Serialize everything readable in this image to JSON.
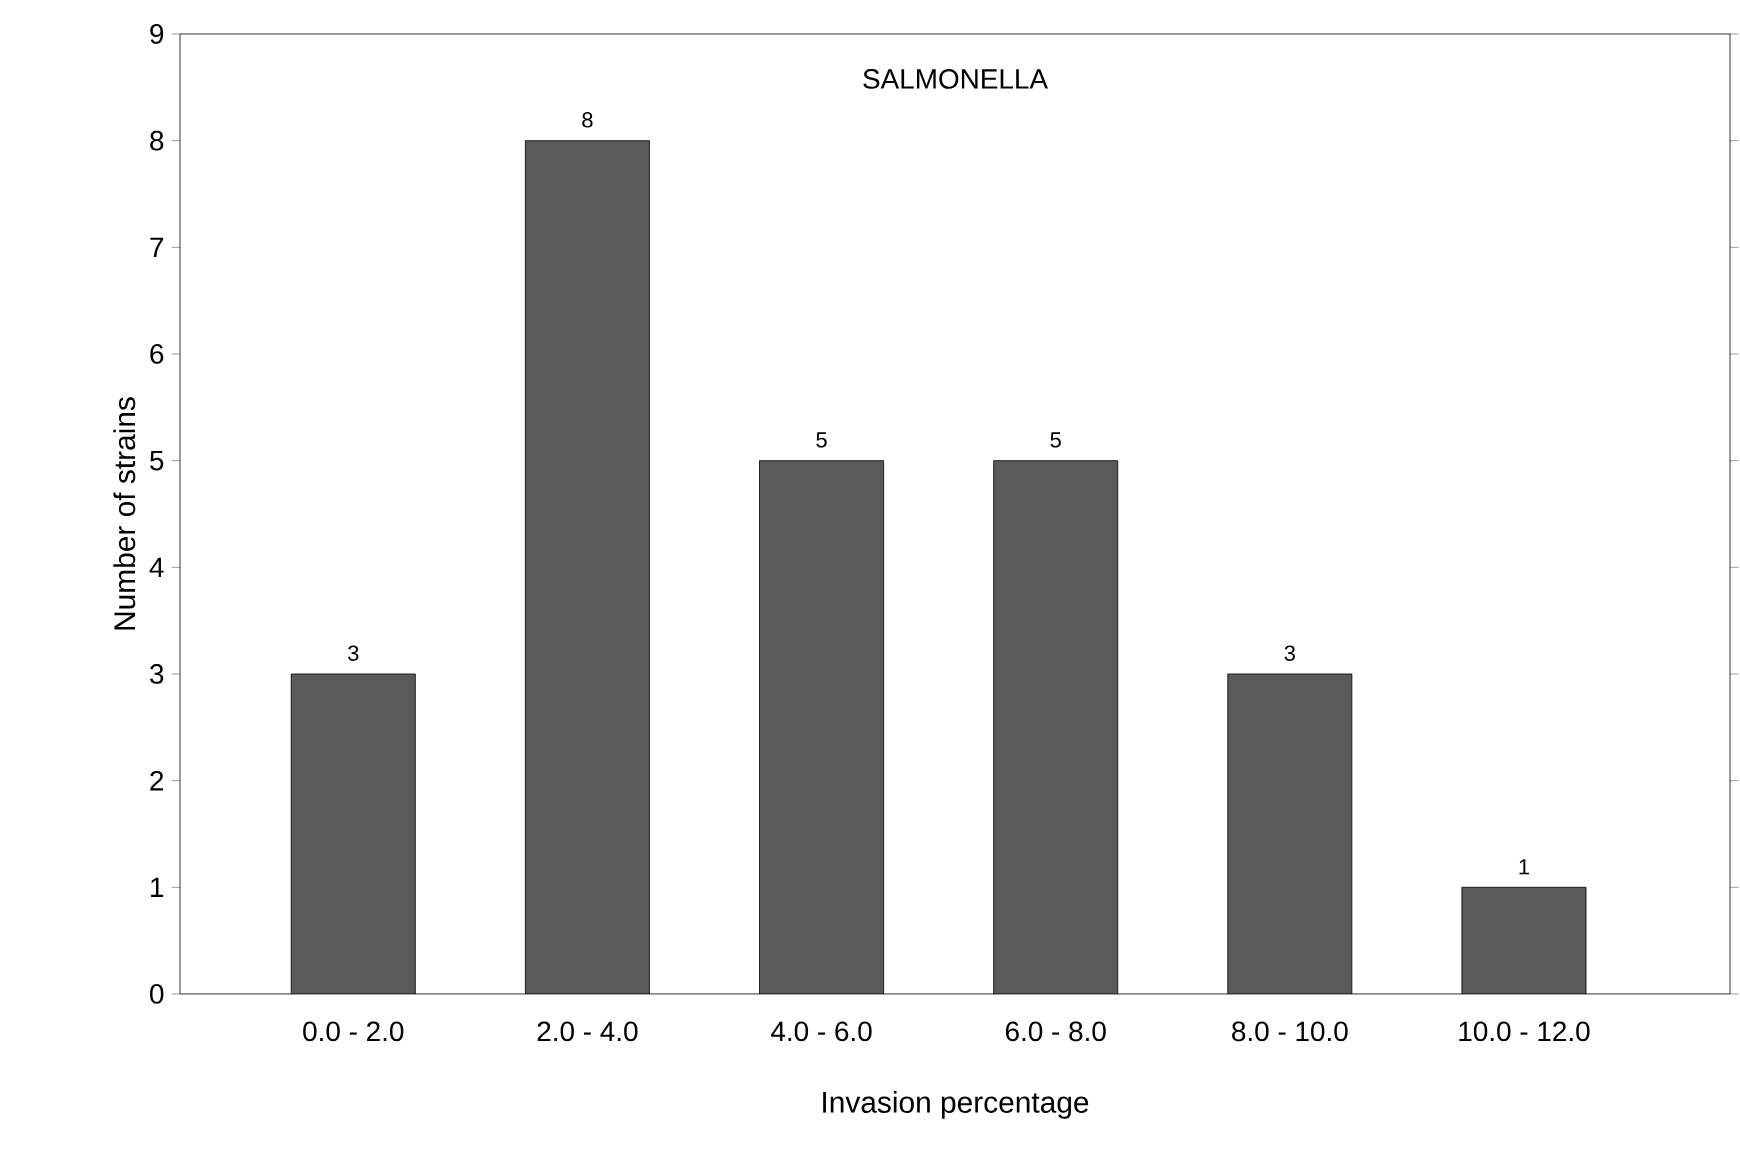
{
  "chart_data": {
    "type": "bar",
    "title": "SALMONELLA",
    "xlabel": "Invasion percentage",
    "ylabel": "Number of strains",
    "categories": [
      "0.0 - 2.0",
      "2.0 - 4.0",
      "4.0 - 6.0",
      "6.0 - 8.0",
      "8.0 - 10.0",
      "10.0 - 12.0"
    ],
    "values": [
      3,
      8,
      5,
      5,
      3,
      1
    ],
    "color": "#5a5a5a",
    "ylim": [
      0,
      9
    ],
    "yticks": [
      0,
      1,
      2,
      3,
      4,
      5,
      6,
      7,
      8,
      9
    ],
    "data_labels": true,
    "grid": false
  }
}
